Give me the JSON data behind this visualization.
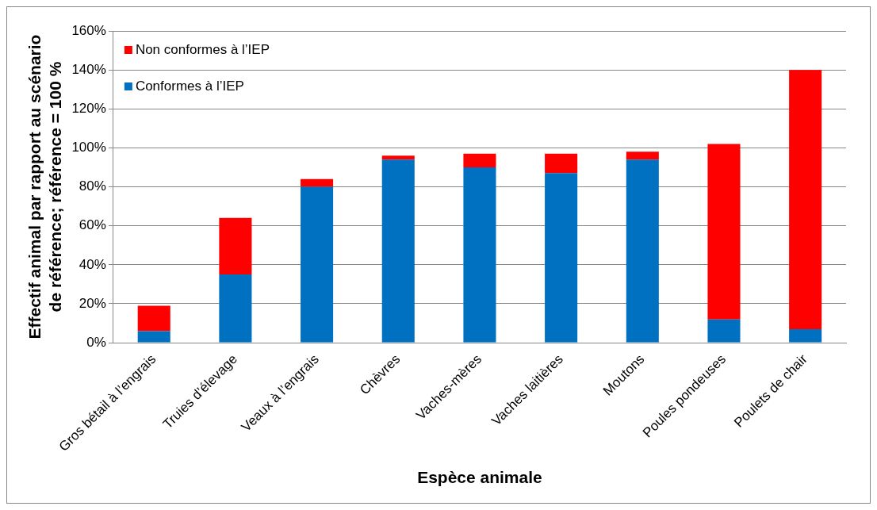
{
  "chart_data": {
    "type": "bar",
    "stacked": true,
    "xlabel": "Espèce animale",
    "ylabel": "Effectif animal par rapport au scénario de référence; référence = 100 %",
    "categories": [
      "Gros bétail à l’engrais",
      "Truies d’élevage",
      "Veaux à l’engrais",
      "Chèvres",
      "Vaches-mères",
      "Vaches laitières",
      "Moutons",
      "Poules pondeuses",
      "Poulets de chair"
    ],
    "series": [
      {
        "name": "Conformes à l’IEP",
        "color": "#0070c0",
        "values": [
          6,
          35,
          80,
          94,
          90,
          87,
          94,
          12,
          7
        ]
      },
      {
        "name": "Non conformes à l’IEP",
        "color": "#ff0000",
        "values": [
          13,
          29,
          4,
          2,
          7,
          10,
          4,
          90,
          133
        ]
      }
    ],
    "ylim": [
      0,
      160
    ],
    "yticks": [
      {
        "value": 0,
        "label": "0%"
      },
      {
        "value": 20,
        "label": "20%"
      },
      {
        "value": 40,
        "label": "40%"
      },
      {
        "value": 60,
        "label": "60%"
      },
      {
        "value": 80,
        "label": "80%"
      },
      {
        "value": 100,
        "label": "100%"
      },
      {
        "value": 120,
        "label": "120%"
      },
      {
        "value": 140,
        "label": "140%"
      },
      {
        "value": 160,
        "label": "160%"
      }
    ],
    "grid": "y",
    "legend": "top left"
  }
}
